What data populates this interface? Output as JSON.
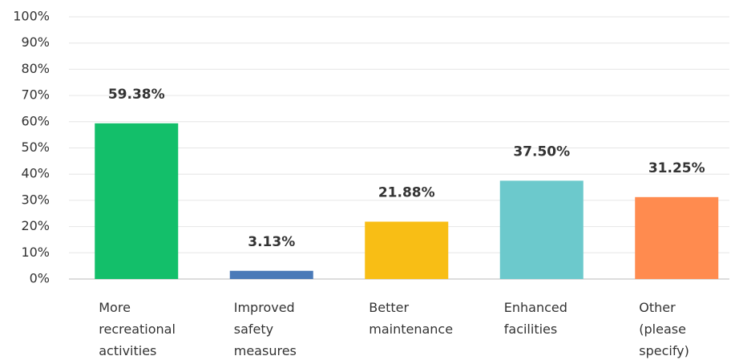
{
  "chart_data": {
    "type": "bar",
    "categories": [
      "More\nrecreational\nactivities",
      "Improved\nsafety\nmeasures",
      "Better\nmaintenance",
      "Enhanced\nfacilities",
      "Other\n(please\nspecify)"
    ],
    "values": [
      59.38,
      3.13,
      21.88,
      37.5,
      31.25
    ],
    "value_labels": [
      "59.38%",
      "3.13%",
      "21.88%",
      "37.50%",
      "31.25%"
    ],
    "colors": [
      "#13bf6a",
      "#4a7ab8",
      "#f8be15",
      "#6cc9cc",
      "#ff8b4f"
    ],
    "ylim": [
      0,
      100
    ],
    "yticks": [
      {
        "value": 0,
        "label": "0%"
      },
      {
        "value": 10,
        "label": "10%"
      },
      {
        "value": 20,
        "label": "20%"
      },
      {
        "value": 30,
        "label": "30%"
      },
      {
        "value": 40,
        "label": "40%"
      },
      {
        "value": 50,
        "label": "50%"
      },
      {
        "value": 60,
        "label": "60%"
      },
      {
        "value": 70,
        "label": "70%"
      },
      {
        "value": 80,
        "label": "80%"
      },
      {
        "value": 90,
        "label": "90%"
      },
      {
        "value": 100,
        "label": "100%"
      }
    ],
    "grid": true
  }
}
